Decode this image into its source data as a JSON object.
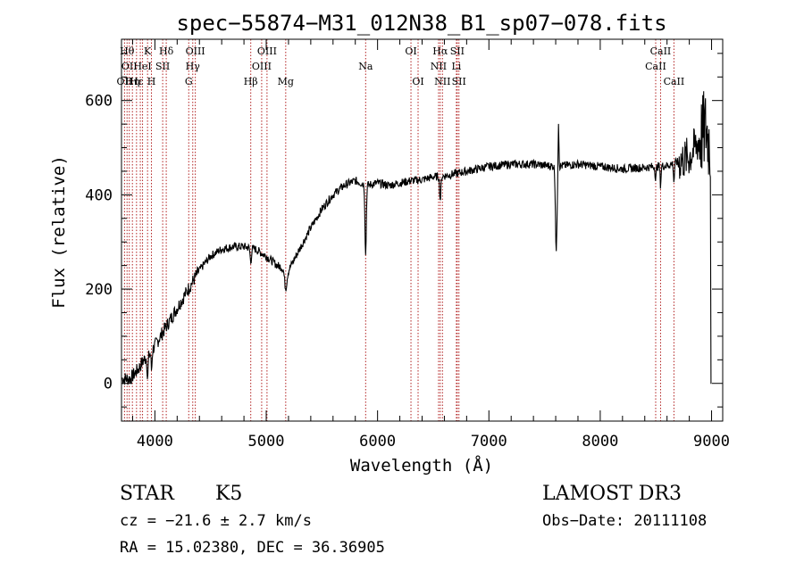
{
  "chart_data": {
    "type": "line",
    "title": "spec−55874−M31_012N38_B1_sp07−078.fits",
    "xlabel": "Wavelength (Å)",
    "ylabel": "Flux (relative)",
    "xlim": [
      3700,
      9100
    ],
    "ylim": [
      -80,
      730
    ],
    "x_ticks": [
      4000,
      5000,
      6000,
      7000,
      8000,
      9000
    ],
    "x_tick_labels": [
      "4000",
      "5000",
      "6000",
      "7000",
      "8000",
      "9000"
    ],
    "y_ticks": [
      0,
      200,
      400,
      600
    ],
    "y_tick_labels": [
      "0",
      "200",
      "400",
      "600"
    ],
    "grid": false,
    "line_color": "#000000",
    "marker_color": "#b22222",
    "spectrum_anchors": [
      [
        3700,
        10
      ],
      [
        3780,
        10
      ],
      [
        3850,
        30
      ],
      [
        3900,
        50
      ],
      [
        3950,
        60
      ],
      [
        4000,
        80
      ],
      [
        4100,
        120
      ],
      [
        4200,
        160
      ],
      [
        4300,
        200
      ],
      [
        4400,
        240
      ],
      [
        4500,
        270
      ],
      [
        4600,
        285
      ],
      [
        4700,
        290
      ],
      [
        4800,
        290
      ],
      [
        4900,
        285
      ],
      [
        5000,
        270
      ],
      [
        5100,
        250
      ],
      [
        5200,
        240
      ],
      [
        5300,
        285
      ],
      [
        5400,
        330
      ],
      [
        5500,
        370
      ],
      [
        5600,
        400
      ],
      [
        5700,
        420
      ],
      [
        5800,
        430
      ],
      [
        5900,
        420
      ],
      [
        6000,
        425
      ],
      [
        6100,
        420
      ],
      [
        6200,
        425
      ],
      [
        6300,
        430
      ],
      [
        6400,
        432
      ],
      [
        6500,
        438
      ],
      [
        6600,
        440
      ],
      [
        6700,
        445
      ],
      [
        6800,
        450
      ],
      [
        6900,
        455
      ],
      [
        7000,
        460
      ],
      [
        7200,
        465
      ],
      [
        7400,
        465
      ],
      [
        7600,
        460
      ],
      [
        7800,
        465
      ],
      [
        8000,
        460
      ],
      [
        8200,
        455
      ],
      [
        8400,
        458
      ],
      [
        8600,
        462
      ],
      [
        8700,
        470
      ],
      [
        8800,
        480
      ],
      [
        8850,
        500
      ],
      [
        8900,
        520
      ],
      [
        8950,
        540
      ],
      [
        8990,
        500
      ]
    ],
    "spectrum_features": [
      [
        5893,
        -150,
        8
      ],
      [
        7605,
        -180,
        10
      ],
      [
        7625,
        100,
        5
      ],
      [
        3935,
        -50,
        6
      ],
      [
        3970,
        -40,
        6
      ],
      [
        4861,
        -30,
        8
      ],
      [
        5175,
        -40,
        15
      ],
      [
        6563,
        -50,
        8
      ],
      [
        8498,
        -30,
        6
      ],
      [
        8542,
        -40,
        6
      ],
      [
        8662,
        -40,
        6
      ]
    ],
    "line_markers": [
      {
        "wavelength": 3727,
        "label": "OII",
        "row": 2
      },
      {
        "wavelength": 3750,
        "label": "Hθ",
        "row": 0
      },
      {
        "wavelength": 3770,
        "label": "OII",
        "row": 1
      },
      {
        "wavelength": 3798,
        "label": "Hη",
        "row": 2
      },
      {
        "wavelength": 3835,
        "label": "Hε",
        "row": 2
      },
      {
        "wavelength": 3869,
        "label": "",
        "row": 0
      },
      {
        "wavelength": 3889,
        "label": "HeI",
        "row": 1
      },
      {
        "wavelength": 3934,
        "label": "K",
        "row": 0
      },
      {
        "wavelength": 3969,
        "label": "H",
        "row": 2
      },
      {
        "wavelength": 4070,
        "label": "SII",
        "row": 1
      },
      {
        "wavelength": 4102,
        "label": "Hδ",
        "row": 0
      },
      {
        "wavelength": 4304,
        "label": "G",
        "row": 2
      },
      {
        "wavelength": 4340,
        "label": "Hγ",
        "row": 1
      },
      {
        "wavelength": 4363,
        "label": "OIII",
        "row": 0
      },
      {
        "wavelength": 4861,
        "label": "Hβ",
        "row": 2
      },
      {
        "wavelength": 4959,
        "label": "OIII",
        "row": 1
      },
      {
        "wavelength": 5007,
        "label": "OIII",
        "row": 0
      },
      {
        "wavelength": 5175,
        "label": "Mg",
        "row": 2
      },
      {
        "wavelength": 5893,
        "label": "Na",
        "row": 1
      },
      {
        "wavelength": 6300,
        "label": "OI",
        "row": 0
      },
      {
        "wavelength": 6364,
        "label": "OI",
        "row": 2
      },
      {
        "wavelength": 6548,
        "label": "NII",
        "row": 1
      },
      {
        "wavelength": 6563,
        "label": "Hα",
        "row": 0
      },
      {
        "wavelength": 6583,
        "label": "NII",
        "row": 2
      },
      {
        "wavelength": 6708,
        "label": "Li",
        "row": 1
      },
      {
        "wavelength": 6716,
        "label": "SII",
        "row": 0
      },
      {
        "wavelength": 6731,
        "label": "SII",
        "row": 2
      },
      {
        "wavelength": 8498,
        "label": "CaII",
        "row": 1
      },
      {
        "wavelength": 8542,
        "label": "CaII",
        "row": 0
      },
      {
        "wavelength": 8662,
        "label": "CaII",
        "row": 2
      }
    ]
  },
  "info": {
    "class": "STAR",
    "subclass": "K5",
    "survey": "LAMOST DR3",
    "cz": "cz = −21.6 ± 2.7 km/s",
    "obs_date": "Obs−Date: 20111108",
    "coords": "RA =  15.02380, DEC =  36.36905"
  }
}
